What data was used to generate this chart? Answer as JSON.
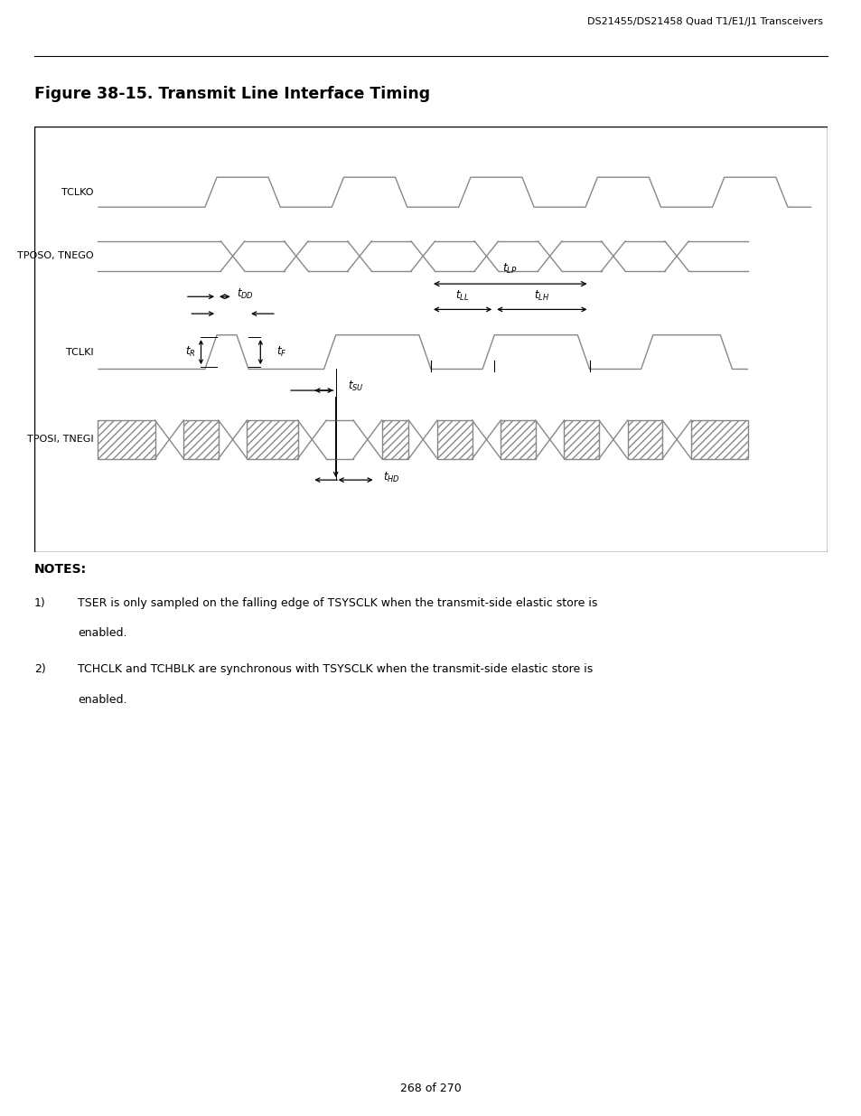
{
  "title": "Figure 38-15. Transmit Line Interface Timing",
  "header": "DS21455/DS21458 Quad T1/E1/J1 Transceivers",
  "page": "268 of 270",
  "notes_title": "NOTES:",
  "note1_num": "1)",
  "note1": "TSER is only sampled on the falling edge of TSYSCLK when the transmit-side elastic store is",
  "note1b": "enabled.",
  "note2_num": "2)",
  "note2": "TCHCLK and TCHBLK are synchronous with TSYSCLK when the transmit-side elastic store is",
  "note2b": "enabled.",
  "bg_color": "#ffffff",
  "signal_color": "#888888",
  "black": "#000000"
}
